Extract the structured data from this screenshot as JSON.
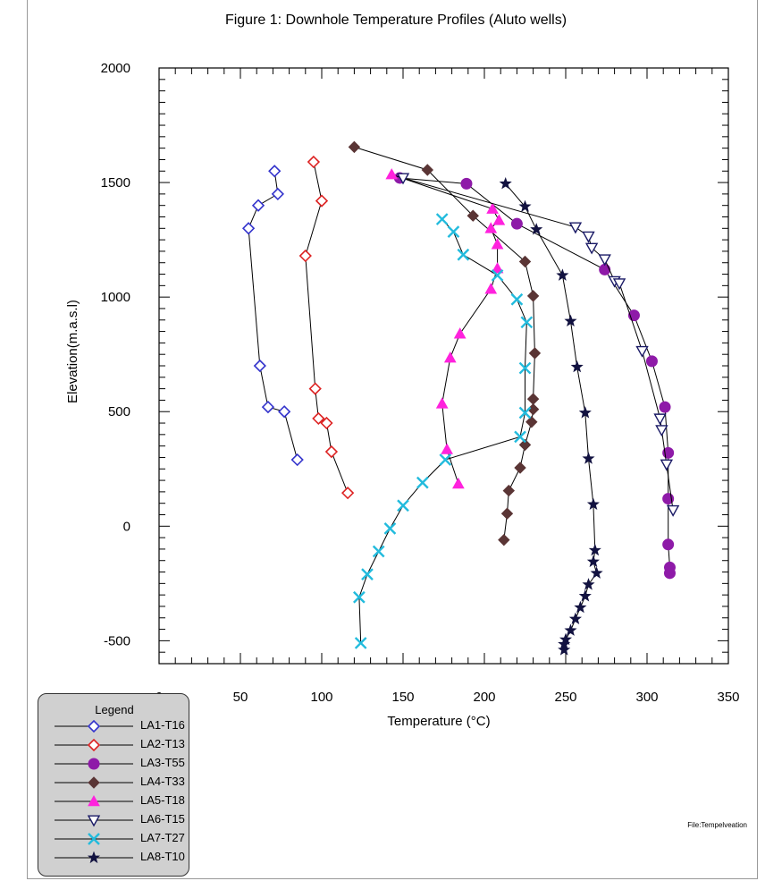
{
  "chart_data": {
    "type": "line",
    "title": "Figure 1: Downhole Temperature Profiles (Aluto wells)",
    "xlabel": "Temperature (°C)",
    "ylabel": "Elevation(m.a.s.l)",
    "xlim": [
      0,
      350
    ],
    "ylim": [
      -600,
      2000
    ],
    "x_ticks": [
      "0",
      "50",
      "100",
      "150",
      "200",
      "250",
      "300",
      "350"
    ],
    "y_ticks": [
      "2000",
      "1500",
      "1000",
      "500",
      "0",
      "-500"
    ],
    "legend": {
      "title": "Legend",
      "position": "bottom-left"
    },
    "file_note": "File:Tempelveation",
    "series": [
      {
        "name": "LA1-T16",
        "color": "#3333cc",
        "marker": "diamond-open",
        "points": [
          [
            71,
            1550
          ],
          [
            73,
            1450
          ],
          [
            61,
            1400
          ],
          [
            55,
            1300
          ],
          [
            62,
            700
          ],
          [
            67,
            520
          ],
          [
            77,
            500
          ],
          [
            85,
            290
          ]
        ]
      },
      {
        "name": "LA2-T13",
        "color": "#dd2222",
        "marker": "diamond-open",
        "points": [
          [
            95,
            1590
          ],
          [
            100,
            1420
          ],
          [
            90,
            1180
          ],
          [
            96,
            600
          ],
          [
            98,
            470
          ],
          [
            103,
            450
          ],
          [
            106,
            325
          ],
          [
            116,
            145
          ]
        ]
      },
      {
        "name": "LA3-T55",
        "color": "#8e1aa8",
        "marker": "circle",
        "points": [
          [
            148,
            1520
          ],
          [
            189,
            1495
          ],
          [
            220,
            1320
          ],
          [
            274,
            1120
          ],
          [
            292,
            920
          ],
          [
            303,
            720
          ],
          [
            311,
            520
          ],
          [
            313,
            320
          ],
          [
            313,
            120
          ],
          [
            313,
            -80
          ],
          [
            314,
            -180
          ],
          [
            314,
            -205
          ]
        ]
      },
      {
        "name": "LA4-T33",
        "color": "#5a3535",
        "marker": "diamond",
        "points": [
          [
            120,
            1655
          ],
          [
            165,
            1555
          ],
          [
            193,
            1355
          ],
          [
            225,
            1155
          ],
          [
            230,
            1005
          ],
          [
            231,
            755
          ],
          [
            230,
            555
          ],
          [
            230,
            510
          ],
          [
            229,
            455
          ],
          [
            225,
            355
          ],
          [
            222,
            255
          ],
          [
            215,
            155
          ],
          [
            214,
            55
          ],
          [
            212,
            -60
          ]
        ]
      },
      {
        "name": "LA5-T18",
        "color": "#ff22dd",
        "marker": "triangle",
        "points": [
          [
            143,
            1535
          ],
          [
            205,
            1385
          ],
          [
            209,
            1335
          ],
          [
            204,
            1300
          ],
          [
            208,
            1230
          ],
          [
            208,
            1125
          ],
          [
            204,
            1035
          ],
          [
            185,
            840
          ],
          [
            179,
            735
          ],
          [
            174,
            535
          ],
          [
            177,
            335
          ],
          [
            184,
            185
          ]
        ]
      },
      {
        "name": "LA6-T15",
        "color": "#1a1a66",
        "marker": "triangle-down-open",
        "points": [
          [
            150,
            1520
          ],
          [
            256,
            1305
          ],
          [
            264,
            1265
          ],
          [
            266,
            1215
          ],
          [
            274,
            1165
          ],
          [
            280,
            1070
          ],
          [
            283,
            1060
          ],
          [
            297,
            765
          ],
          [
            308,
            470
          ],
          [
            309,
            420
          ],
          [
            312,
            270
          ],
          [
            316,
            70
          ]
        ]
      },
      {
        "name": "LA7-T27",
        "color": "#22bbdd",
        "marker": "x",
        "points": [
          [
            174,
            1340
          ],
          [
            181,
            1285
          ],
          [
            187,
            1185
          ],
          [
            208,
            1095
          ],
          [
            220,
            990
          ],
          [
            226,
            890
          ],
          [
            225,
            690
          ],
          [
            225,
            495
          ],
          [
            222,
            390
          ],
          [
            176,
            290
          ],
          [
            162,
            190
          ],
          [
            150,
            90
          ],
          [
            142,
            -10
          ],
          [
            135,
            -110
          ],
          [
            128,
            -210
          ],
          [
            123,
            -310
          ],
          [
            124,
            -510
          ]
        ]
      },
      {
        "name": "LA8-T10",
        "color": "#121240",
        "marker": "star",
        "points": [
          [
            213,
            1495
          ],
          [
            225,
            1395
          ],
          [
            232,
            1295
          ],
          [
            248,
            1095
          ],
          [
            253,
            895
          ],
          [
            257,
            695
          ],
          [
            262,
            495
          ],
          [
            264,
            295
          ],
          [
            267,
            95
          ],
          [
            268,
            -105
          ],
          [
            267,
            -155
          ],
          [
            269,
            -205
          ],
          [
            264,
            -255
          ],
          [
            262,
            -305
          ],
          [
            259,
            -355
          ],
          [
            256,
            -405
          ],
          [
            253,
            -455
          ],
          [
            250,
            -495
          ],
          [
            249,
            -515
          ],
          [
            249,
            -540
          ]
        ]
      }
    ]
  }
}
